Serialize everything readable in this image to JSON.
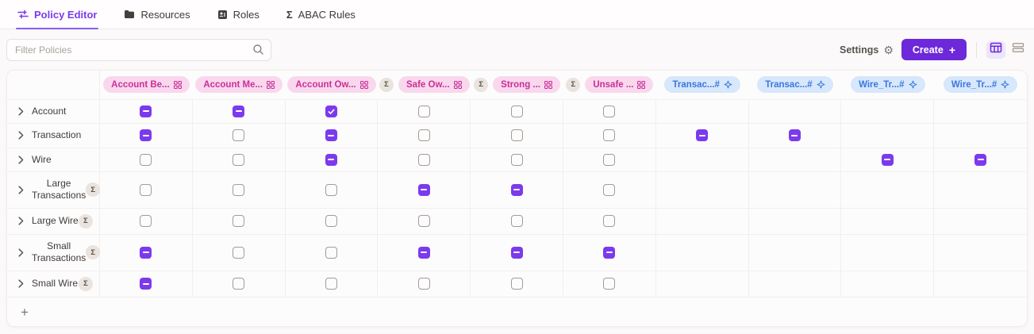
{
  "tabs": [
    {
      "label": "Policy Editor",
      "icon": "sliders-icon",
      "active": true
    },
    {
      "label": "Resources",
      "icon": "folder-icon",
      "active": false
    },
    {
      "label": "Roles",
      "icon": "id-card-icon",
      "active": false
    },
    {
      "label": "ABAC Rules",
      "icon": "sigma-icon",
      "active": false
    }
  ],
  "toolbar": {
    "filter_placeholder": "Filter Policies",
    "settings_label": "Settings",
    "create_label": "Create"
  },
  "icons": {
    "gear": "⚙",
    "plus": "+",
    "sigma": "Σ",
    "add_row": "+"
  },
  "colors": {
    "accent_purple": "#7c3aed",
    "create_button": "#6d28d9",
    "role_chip_bg": "#f9d8ee",
    "role_chip_text": "#c92f97",
    "attr_chip_bg": "#d7e7fc",
    "attr_chip_text": "#3b77dd"
  },
  "table": {
    "columns": [
      {
        "label": "Account Be...",
        "type": "role",
        "aggregate": false
      },
      {
        "label": "Account Me...",
        "type": "role",
        "aggregate": false
      },
      {
        "label": "Account Ow...",
        "type": "role",
        "aggregate": false
      },
      {
        "label": "Safe Ow...",
        "type": "role",
        "aggregate": true
      },
      {
        "label": "Strong ...",
        "type": "role",
        "aggregate": true
      },
      {
        "label": "Unsafe ...",
        "type": "role",
        "aggregate": true
      },
      {
        "label": "Transac...#",
        "type": "attribute",
        "aggregate": false
      },
      {
        "label": "Transac...#",
        "type": "attribute",
        "aggregate": false
      },
      {
        "label": "Wire_Tr...#",
        "type": "attribute",
        "aggregate": false
      },
      {
        "label": "Wire_Tr...#",
        "type": "attribute",
        "aggregate": false
      }
    ],
    "rows": [
      {
        "label": "Account",
        "aggregate": false,
        "cells": [
          "indeterminate",
          "indeterminate",
          "checked",
          "unchecked",
          "unchecked",
          "unchecked",
          null,
          null,
          null,
          null
        ]
      },
      {
        "label": "Transaction",
        "aggregate": false,
        "cells": [
          "indeterminate",
          "unchecked",
          "indeterminate",
          "unchecked",
          "unchecked",
          "unchecked",
          "indeterminate",
          "indeterminate",
          null,
          null
        ]
      },
      {
        "label": "Wire",
        "aggregate": false,
        "cells": [
          "unchecked",
          "unchecked",
          "indeterminate",
          "unchecked",
          "unchecked",
          "unchecked",
          null,
          null,
          "indeterminate",
          "indeterminate"
        ]
      },
      {
        "label": "Large Transactions",
        "aggregate": true,
        "cells": [
          "unchecked",
          "unchecked",
          "unchecked",
          "indeterminate",
          "indeterminate",
          "unchecked",
          null,
          null,
          null,
          null
        ]
      },
      {
        "label": "Large Wire",
        "aggregate": true,
        "cells": [
          "unchecked",
          "unchecked",
          "unchecked",
          "unchecked",
          "unchecked",
          "unchecked",
          null,
          null,
          null,
          null
        ]
      },
      {
        "label": "Small Transactions",
        "aggregate": true,
        "cells": [
          "indeterminate",
          "unchecked",
          "unchecked",
          "indeterminate",
          "indeterminate",
          "indeterminate",
          null,
          null,
          null,
          null
        ]
      },
      {
        "label": "Small Wire",
        "aggregate": true,
        "cells": [
          "indeterminate",
          "unchecked",
          "unchecked",
          "unchecked",
          "unchecked",
          "unchecked",
          null,
          null,
          null,
          null
        ]
      }
    ]
  }
}
